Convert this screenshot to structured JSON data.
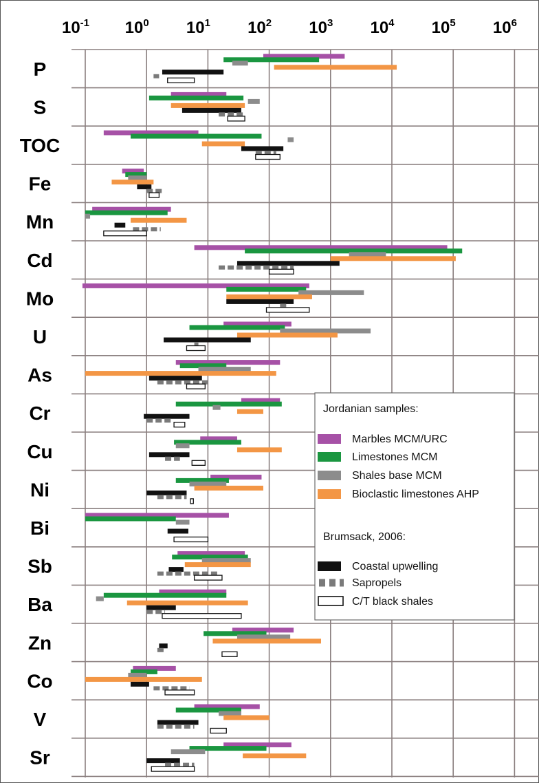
{
  "chart_data": {
    "type": "bar",
    "orientation": "horizontal",
    "x_scale": "log",
    "xlim": [
      0.1,
      1000000
    ],
    "x_tick_labels": [
      {
        "base": "10",
        "exp": "-1"
      },
      {
        "base": "10",
        "exp": "0"
      },
      {
        "base": "10",
        "exp": "1"
      },
      {
        "base": "10",
        "exp": "2"
      },
      {
        "base": "10",
        "exp": "3"
      },
      {
        "base": "10",
        "exp": "4"
      },
      {
        "base": "10",
        "exp": "5"
      },
      {
        "base": "10",
        "exp": "6"
      }
    ],
    "grid": true,
    "categories": [
      "P",
      "S",
      "TOC",
      "Fe",
      "Mn",
      "Cd",
      "Mo",
      "U",
      "As",
      "Cr",
      "Cu",
      "Ni",
      "Bi",
      "Sb",
      "Ba",
      "Zn",
      "Co",
      "V",
      "Sr"
    ],
    "series": [
      {
        "name": "Marbles MCM/URC",
        "color": "#a651a6",
        "style": "solid",
        "ranges": [
          [
            80,
            1700
          ],
          [
            2.5,
            20
          ],
          [
            0.2,
            7
          ],
          [
            0.4,
            0.9
          ],
          [
            0.13,
            2.5
          ],
          [
            6,
            80000
          ],
          [
            0.09,
            450
          ],
          [
            18,
            230
          ],
          [
            3,
            150
          ],
          [
            35,
            150
          ],
          [
            7.5,
            30
          ],
          [
            11,
            75
          ],
          [
            0.1,
            22
          ],
          [
            3.2,
            40
          ],
          [
            1.6,
            20
          ],
          [
            25,
            250
          ],
          [
            0.6,
            3
          ],
          [
            6,
            70
          ],
          [
            18,
            230
          ]
        ]
      },
      {
        "name": "Limestones MCM",
        "color": "#1a9640",
        "style": "solid",
        "ranges": [
          [
            18,
            650
          ],
          [
            1.1,
            38
          ],
          [
            0.55,
            75
          ],
          [
            0.45,
            1
          ],
          [
            0.1,
            2.2
          ],
          [
            40,
            140000
          ],
          [
            20,
            400
          ],
          [
            5,
            180
          ],
          [
            3.5,
            20
          ],
          [
            3,
            160
          ],
          [
            2.8,
            35
          ],
          [
            3,
            22
          ],
          [
            0.1,
            3
          ],
          [
            2.6,
            45
          ],
          [
            0.2,
            20
          ],
          [
            8.5,
            90
          ],
          [
            0.55,
            1.5
          ],
          [
            3,
            35
          ],
          [
            5,
            90
          ]
        ]
      },
      {
        "name": "Shales base MCM",
        "color": "#8c8c8c",
        "style": "solid",
        "ranges": [
          [
            25,
            45
          ],
          [
            45,
            70
          ],
          [
            200,
            250
          ],
          [
            0.5,
            1
          ],
          [
            0.1,
            0.12
          ],
          [
            2000,
            8000
          ],
          [
            300,
            3500
          ],
          [
            150,
            4500
          ],
          [
            7,
            50
          ],
          [
            12,
            16
          ],
          [
            3,
            5
          ],
          [
            5,
            20
          ],
          [
            3,
            5
          ],
          [
            8,
            50
          ],
          [
            0.15,
            0.2
          ],
          [
            30,
            220
          ],
          [
            0.5,
            1
          ],
          [
            15,
            35
          ],
          [
            2.5,
            9
          ]
        ]
      },
      {
        "name": "Bioclastic limestones AHP",
        "color": "#f39645",
        "style": "solid",
        "ranges": [
          [
            120,
            12000
          ],
          [
            2.5,
            40
          ],
          [
            8,
            40
          ],
          [
            0.27,
            1.3
          ],
          [
            0.55,
            4.5
          ],
          [
            1000,
            110000
          ],
          [
            20,
            500
          ],
          [
            30,
            1300
          ],
          [
            0.1,
            130
          ],
          [
            30,
            80
          ],
          [
            30,
            160
          ],
          [
            6,
            80
          ],
          [
            null,
            null
          ],
          [
            4.2,
            50
          ],
          [
            0.48,
            45
          ],
          [
            12,
            700
          ],
          [
            0.1,
            8
          ],
          [
            18,
            100
          ],
          [
            37,
            400
          ]
        ]
      },
      {
        "name": "Coastal upwelling",
        "color": "#111111",
        "style": "solid",
        "ranges": [
          [
            1.8,
            18
          ],
          [
            3.8,
            35
          ],
          [
            35,
            170
          ],
          [
            0.7,
            1.2
          ],
          [
            0.3,
            0.45
          ],
          [
            30,
            1400
          ],
          [
            20,
            250
          ],
          [
            1.9,
            50
          ],
          [
            1.1,
            8
          ],
          [
            0.9,
            5
          ],
          [
            1.1,
            5
          ],
          [
            1,
            4.5
          ],
          [
            2.2,
            4.8
          ],
          [
            2.3,
            4
          ],
          [
            1,
            3
          ],
          [
            1.6,
            2.2
          ],
          [
            0.55,
            1.1
          ],
          [
            1.5,
            7
          ],
          [
            1,
            3.5
          ]
        ]
      },
      {
        "name": "Sapropels",
        "color": "#7a7a7a",
        "style": "dashed",
        "ranges": [
          [
            1.3,
            1.6
          ],
          [
            15,
            40
          ],
          [
            60,
            130
          ],
          [
            1,
            1.9
          ],
          [
            0.6,
            1.7
          ],
          [
            15,
            250
          ],
          [
            150,
            200
          ],
          [
            6,
            7
          ],
          [
            1.5,
            10
          ],
          [
            1,
            2.5
          ],
          [
            2,
            3.5
          ],
          [
            1.5,
            4.5
          ],
          [
            null,
            null
          ],
          [
            1.5,
            15
          ],
          [
            1,
            2
          ],
          [
            1.5,
            2
          ],
          [
            1.3,
            5
          ],
          [
            1.5,
            6
          ],
          [
            2,
            6
          ]
        ]
      },
      {
        "name": "C/T black shales",
        "color": "#ffffff",
        "style": "outline",
        "ranges": [
          [
            2.2,
            6
          ],
          [
            21,
            40
          ],
          [
            60,
            150
          ],
          [
            1.1,
            1.6
          ],
          [
            0.2,
            1
          ],
          [
            100,
            250
          ],
          [
            90,
            450
          ],
          [
            4.5,
            9
          ],
          [
            4.5,
            9
          ],
          [
            2.8,
            4.2
          ],
          [
            5.5,
            9
          ],
          [
            5.2,
            5.8
          ],
          [
            2.8,
            10
          ],
          [
            6,
            17
          ],
          [
            1.8,
            35
          ],
          [
            17,
            30
          ],
          [
            2,
            6
          ],
          [
            11,
            20
          ],
          [
            1.2,
            6
          ]
        ]
      }
    ]
  },
  "legend": {
    "group1_title": "Jordanian samples:",
    "group2_title": "Brumsack, 2006:",
    "entries": [
      {
        "label": "Marbles MCM/URC",
        "swatch": "solid",
        "color": "#a651a6"
      },
      {
        "label": "Limestones MCM",
        "swatch": "solid",
        "color": "#1a9640"
      },
      {
        "label": "Shales base MCM",
        "swatch": "solid",
        "color": "#8c8c8c"
      },
      {
        "label": "Bioclastic limestones AHP",
        "swatch": "solid",
        "color": "#f39645"
      },
      {
        "label": "Coastal upwelling",
        "swatch": "solid",
        "color": "#111111"
      },
      {
        "label": "Sapropels",
        "swatch": "dashed",
        "color": "#7a7a7a"
      },
      {
        "label": "C/T black shales",
        "swatch": "outline",
        "color": "#111111"
      }
    ]
  },
  "colors": {
    "grid": "#8a7f7f",
    "frame": "#555555"
  }
}
